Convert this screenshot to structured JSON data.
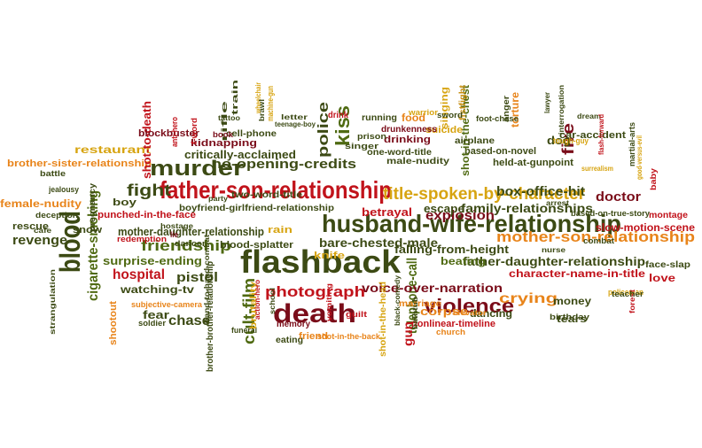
{
  "palette": {
    "dark_red": "#7a0c19",
    "red": "#c1131b",
    "olive": "#4f6a12",
    "dark_olive": "#3c4a14",
    "orange": "#e8841a",
    "gold": "#d7a411",
    "amber": "#c78f12"
  },
  "words": [
    {
      "text": "husband-wife-relationship",
      "color": "dark_olive"
    },
    {
      "text": "father-son-relationship",
      "color": "red"
    },
    {
      "text": "flashback",
      "color": "dark_olive"
    },
    {
      "text": "murder",
      "color": "dark_olive"
    },
    {
      "text": "death",
      "color": "dark_red"
    },
    {
      "text": "violence",
      "color": "dark_red"
    },
    {
      "text": "blood",
      "color": "dark_olive"
    },
    {
      "text": "title-spoken-by-character",
      "color": "gold"
    },
    {
      "text": "mother-son-relationship",
      "color": "orange"
    },
    {
      "text": "no-opening-credits",
      "color": "dark_olive"
    },
    {
      "text": "photograph",
      "color": "red"
    },
    {
      "text": "friendship",
      "color": "olive"
    },
    {
      "text": "kiss",
      "color": "olive"
    },
    {
      "text": "police",
      "color": "dark_olive"
    },
    {
      "text": "cult-film",
      "color": "olive"
    },
    {
      "text": "fight",
      "color": "dark_olive"
    },
    {
      "text": "explosion",
      "color": "dark_red"
    },
    {
      "text": "box-office-hit",
      "color": "dark_olive"
    },
    {
      "text": "crying",
      "color": "orange"
    },
    {
      "text": "doctor",
      "color": "dark_red"
    },
    {
      "text": "fire",
      "color": "dark_red"
    },
    {
      "text": "chase",
      "color": "dark_olive"
    },
    {
      "text": "hospital",
      "color": "red"
    },
    {
      "text": "pistol",
      "color": "dark_olive"
    },
    {
      "text": "revenge",
      "color": "dark_olive"
    },
    {
      "text": "family-relationships",
      "color": "dark_olive"
    },
    {
      "text": "father-daughter-relationship",
      "color": "dark_olive"
    },
    {
      "text": "bare-chested-male",
      "color": "dark_olive"
    },
    {
      "text": "telephone-call",
      "color": "olive"
    },
    {
      "text": "cigarette-smoking",
      "color": "olive"
    },
    {
      "text": "critically-acclaimed",
      "color": "dark_olive"
    },
    {
      "text": "surprise-ending",
      "color": "olive"
    },
    {
      "text": "mother-daughter-relationship",
      "color": "dark_olive"
    },
    {
      "text": "voice-over-narration",
      "color": "dark_red"
    },
    {
      "text": "falling-from-height",
      "color": "dark_olive"
    },
    {
      "text": "character-name-in-title",
      "color": "red"
    },
    {
      "text": "slow-motion-scene",
      "color": "red"
    },
    {
      "text": "restaurant",
      "color": "gold"
    },
    {
      "text": "brother-sister-relationship",
      "color": "orange"
    },
    {
      "text": "female-nudity",
      "color": "orange"
    },
    {
      "text": "corpse",
      "color": "orange"
    },
    {
      "text": "betrayal",
      "color": "red"
    },
    {
      "text": "escape",
      "color": "dark_olive"
    },
    {
      "text": "shot-to-death",
      "color": "red"
    },
    {
      "text": "watching-tv",
      "color": "dark_olive"
    },
    {
      "text": "punched-in-the-face",
      "color": "red"
    },
    {
      "text": "boyfriend-girlfriend-relationship",
      "color": "dark_olive"
    },
    {
      "text": "blood-splatter",
      "color": "dark_olive"
    },
    {
      "text": "beating",
      "color": "olive"
    },
    {
      "text": "dancing",
      "color": "dark_olive"
    },
    {
      "text": "money",
      "color": "dark_olive"
    },
    {
      "text": "snow",
      "color": "dark_olive"
    },
    {
      "text": "rain",
      "color": "gold"
    },
    {
      "text": "knife",
      "color": "gold"
    },
    {
      "text": "gun",
      "color": "red"
    },
    {
      "text": "tears",
      "color": "dark_olive"
    },
    {
      "text": "fear",
      "color": "dark_olive"
    },
    {
      "text": "love",
      "color": "red"
    },
    {
      "text": "rescue",
      "color": "dark_olive"
    },
    {
      "text": "dog",
      "color": "dark_olive"
    },
    {
      "text": "torture",
      "color": "orange"
    },
    {
      "text": "car-accident",
      "color": "dark_olive"
    },
    {
      "text": "based-on-novel",
      "color": "dark_olive"
    },
    {
      "text": "held-at-gunpoint",
      "color": "dark_olive"
    },
    {
      "text": "shot-in-the-chest",
      "color": "olive"
    },
    {
      "text": "drinking",
      "color": "dark_red"
    },
    {
      "text": "male-nudity",
      "color": "dark_olive"
    },
    {
      "text": "one-word-title",
      "color": "dark_olive"
    },
    {
      "text": "blockbuster",
      "color": "dark_red"
    },
    {
      "text": "kidnapping",
      "color": "dark_red"
    },
    {
      "text": "cell-phone",
      "color": "dark_olive"
    },
    {
      "text": "food",
      "color": "orange"
    },
    {
      "text": "suicide",
      "color": "gold"
    },
    {
      "text": "singing",
      "color": "gold"
    },
    {
      "text": "airplane",
      "color": "dark_olive"
    },
    {
      "text": "fistfight",
      "color": "amber"
    },
    {
      "text": "drunkenness",
      "color": "dark_red"
    },
    {
      "text": "boy",
      "color": "dark_olive"
    },
    {
      "text": "nonlinear-timeline",
      "color": "red"
    },
    {
      "text": "marriage",
      "color": "orange"
    },
    {
      "text": "montage",
      "color": "red"
    },
    {
      "text": "face-slap",
      "color": "dark_olive"
    },
    {
      "text": "based-on-true-story",
      "color": "dark_olive"
    },
    {
      "text": "two-word-title",
      "color": "dark_olive"
    },
    {
      "text": "memory",
      "color": "dark_red"
    },
    {
      "text": "eating",
      "color": "dark_olive"
    },
    {
      "text": "friend",
      "color": "orange"
    },
    {
      "text": "shot-in-the-back",
      "color": "orange"
    },
    {
      "text": "shot-in-the-head",
      "color": "gold"
    },
    {
      "text": "brother-brother-relationship",
      "color": "dark_olive"
    },
    {
      "text": "subjective-camera",
      "color": "orange"
    },
    {
      "text": "soldier",
      "color": "dark_olive"
    },
    {
      "text": "shootout",
      "color": "orange"
    },
    {
      "text": "deception",
      "color": "dark_olive"
    },
    {
      "text": "jealousy",
      "color": "dark_olive"
    },
    {
      "text": "battle",
      "color": "dark_olive"
    },
    {
      "text": "pregnancy",
      "color": "dark_olive"
    },
    {
      "text": "funeral",
      "color": "dark_olive"
    },
    {
      "text": "arrest",
      "color": "dark_olive"
    },
    {
      "text": "party",
      "color": "dark_olive"
    },
    {
      "text": "lie",
      "color": "dark_red"
    },
    {
      "text": "dancer",
      "color": "dark_olive"
    },
    {
      "text": "redemption",
      "color": "red"
    },
    {
      "text": "hostage",
      "color": "dark_olive"
    },
    {
      "text": "cafe",
      "color": "dark_olive"
    },
    {
      "text": "anti-hero",
      "color": "red"
    },
    {
      "text": "f-word",
      "color": "red"
    },
    {
      "text": "book",
      "color": "dark_red"
    },
    {
      "text": "tattoo",
      "color": "dark_olive"
    },
    {
      "text": "rifle",
      "color": "dark_olive"
    },
    {
      "text": "train",
      "color": "dark_olive"
    },
    {
      "text": "wheelchair",
      "color": "gold"
    },
    {
      "text": "teenage-boy",
      "color": "dark_olive"
    },
    {
      "text": "brawl",
      "color": "dark_olive"
    },
    {
      "text": "machine-gun",
      "color": "gold"
    },
    {
      "text": "letter",
      "color": "dark_olive"
    },
    {
      "text": "drink",
      "color": "red"
    },
    {
      "text": "prison",
      "color": "dark_olive"
    },
    {
      "text": "running",
      "color": "dark_olive"
    },
    {
      "text": "warrior",
      "color": "gold"
    },
    {
      "text": "sword",
      "color": "dark_olive"
    },
    {
      "text": "foot-chase",
      "color": "dark_olive"
    },
    {
      "text": "anger",
      "color": "dark_olive"
    },
    {
      "text": "tough-guy",
      "color": "gold"
    },
    {
      "text": "lawyer",
      "color": "dark_olive"
    },
    {
      "text": "interrogation",
      "color": "dark_olive"
    },
    {
      "text": "dream",
      "color": "dark_olive"
    },
    {
      "text": "flash-forward",
      "color": "red"
    },
    {
      "text": "surrealism",
      "color": "gold"
    },
    {
      "text": "martial-arts",
      "color": "dark_olive"
    },
    {
      "text": "good-versus-evil",
      "color": "gold"
    },
    {
      "text": "baby",
      "color": "red"
    },
    {
      "text": "combat",
      "color": "dark_olive"
    },
    {
      "text": "nurse",
      "color": "dark_olive"
    },
    {
      "text": "policeman",
      "color": "gold"
    },
    {
      "text": "forest",
      "color": "red"
    },
    {
      "text": "teacher",
      "color": "dark_olive"
    },
    {
      "text": "birthday",
      "color": "dark_olive"
    },
    {
      "text": "church",
      "color": "orange"
    },
    {
      "text": "elevator",
      "color": "orange"
    },
    {
      "text": "bathtub",
      "color": "dark_olive"
    },
    {
      "text": "black-comedy",
      "color": "dark_olive"
    },
    {
      "text": "vomiting",
      "color": "red"
    },
    {
      "text": "guilt",
      "color": "red"
    },
    {
      "text": "school",
      "color": "dark_olive"
    },
    {
      "text": "brutality",
      "color": "gold"
    },
    {
      "text": "hand-to-hand-combat",
      "color": "dark_olive"
    },
    {
      "text": "action-hero",
      "color": "red"
    },
    {
      "text": "strangulation",
      "color": "dark_olive"
    },
    {
      "text": "singer",
      "color": "dark_olive"
    }
  ]
}
